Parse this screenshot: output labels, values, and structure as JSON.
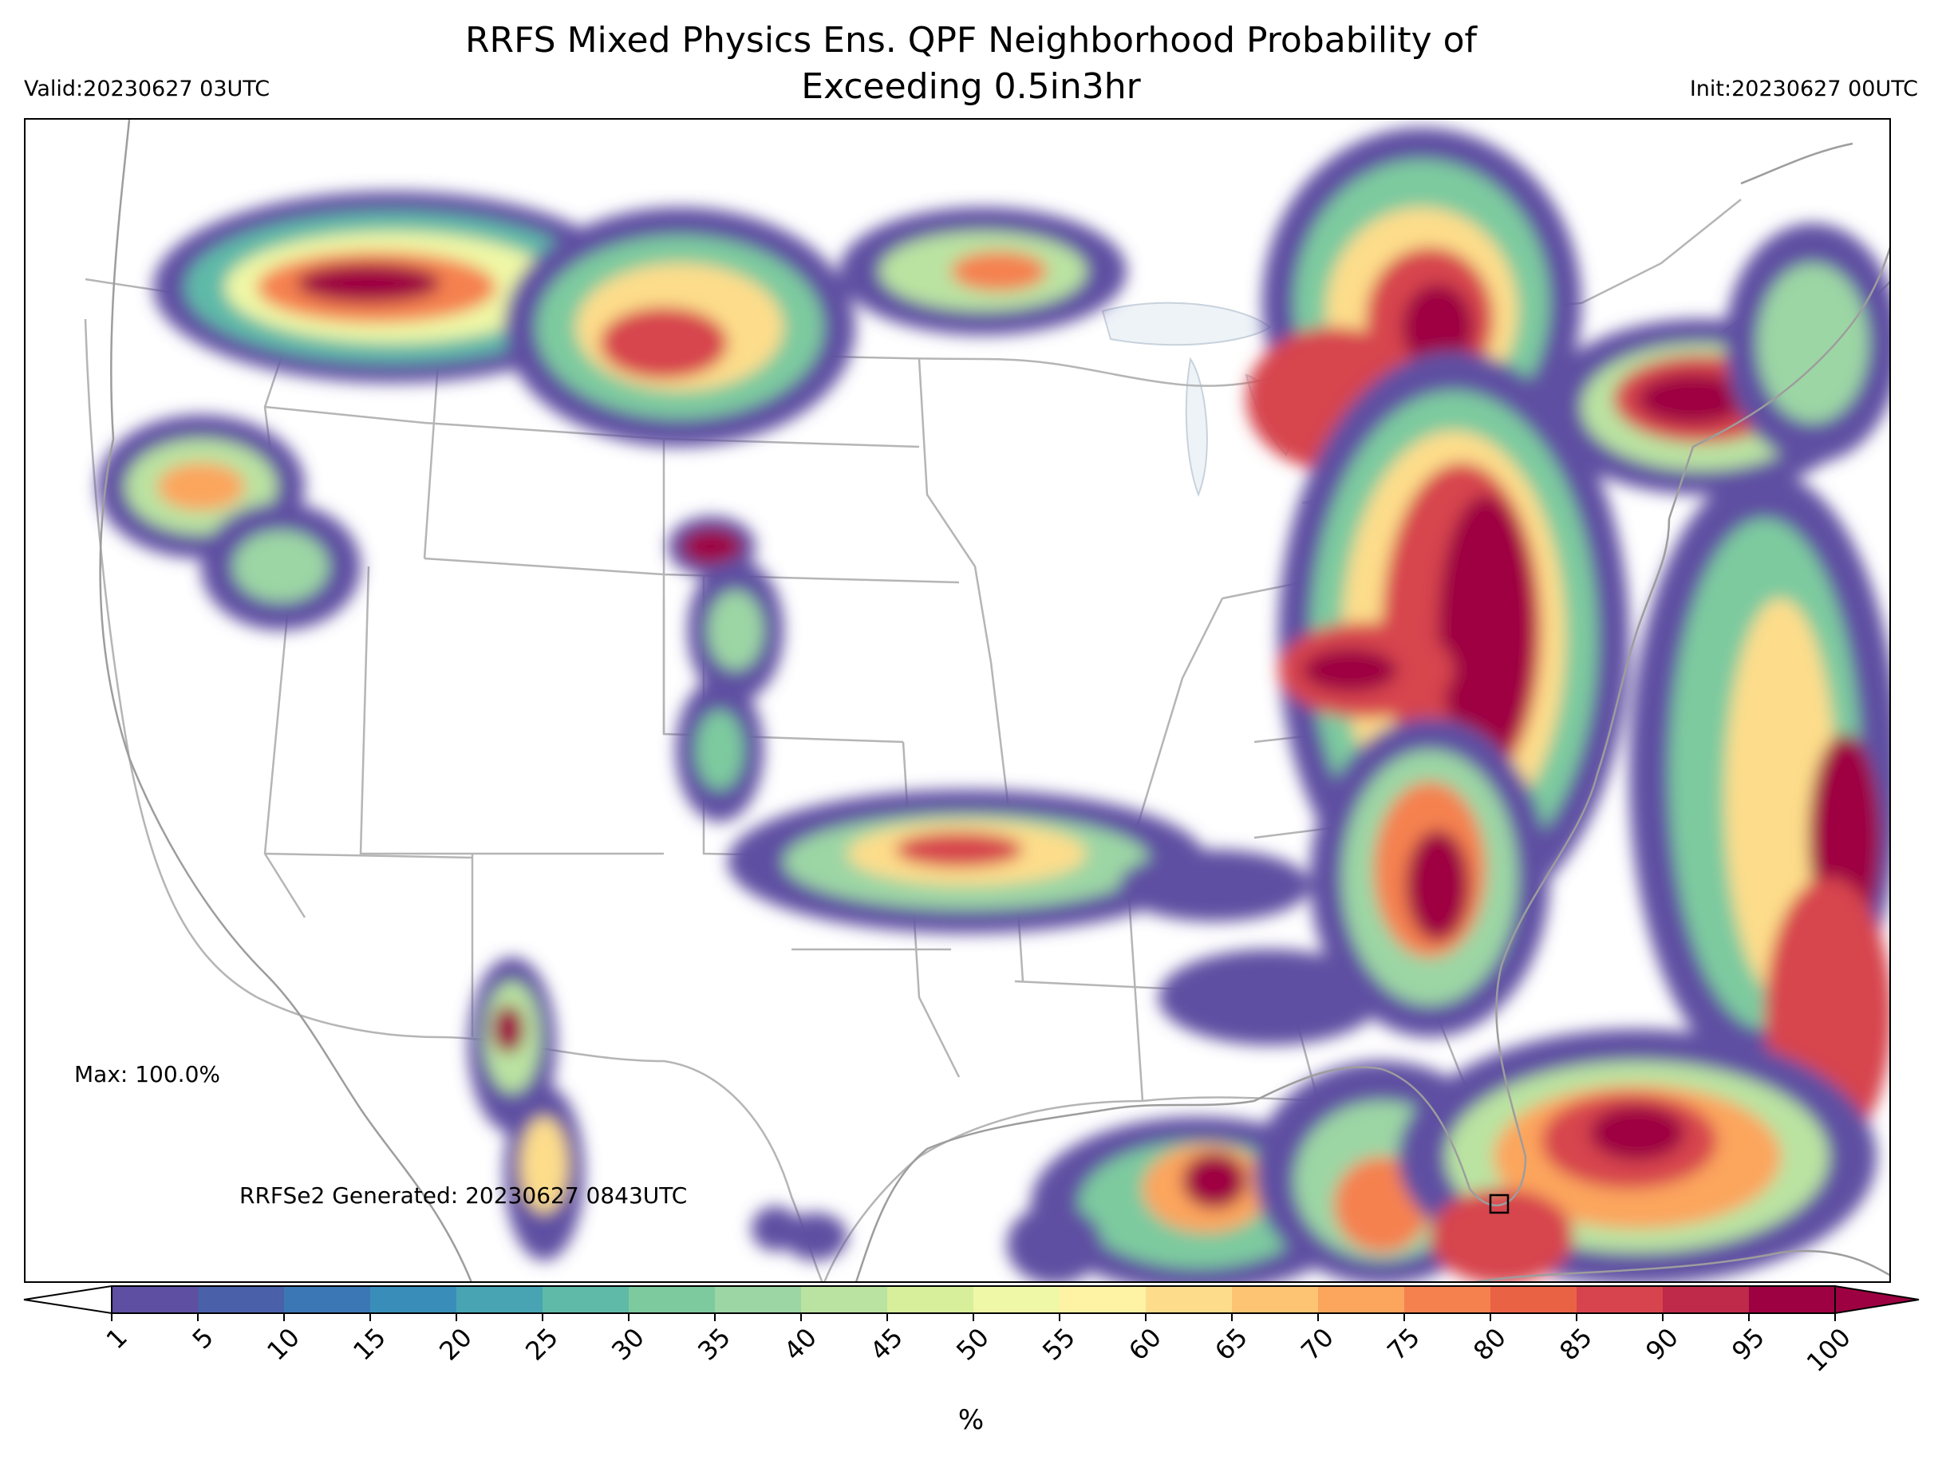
{
  "title_line1": "RRFS Mixed Physics Ens. QPF Neighborhood Probability of",
  "title_line2": "Exceeding 0.5in3hr",
  "valid": "Valid:20230627 03UTC",
  "init": "Init:20230627 00UTC",
  "max_label": "Max: 100.0%",
  "generated": "RRFSe2 Generated: 20230627 0843UTC",
  "colorbar": {
    "label": "%",
    "ticks": [
      "1",
      "5",
      "10",
      "15",
      "20",
      "25",
      "30",
      "35",
      "40",
      "45",
      "50",
      "55",
      "60",
      "65",
      "70",
      "75",
      "80",
      "85",
      "90",
      "95",
      "100"
    ],
    "colors": [
      "#5e4fa2",
      "#4a61aa",
      "#3b77b5",
      "#388eb9",
      "#48a4b3",
      "#5fbaa8",
      "#7dca9f",
      "#9cd6a4",
      "#bae3a1",
      "#d7ef9b",
      "#eff8a6",
      "#fef2a5",
      "#fddd8b",
      "#fdc473",
      "#fca55d",
      "#f5814f",
      "#ea6244",
      "#d7444d",
      "#bf2a4a",
      "#9e0142"
    ],
    "under_color": "#ffffff",
    "over_color": "#9e0142"
  },
  "map": {
    "land_color": "#ffffff",
    "lake_color": "#eef3f8",
    "border_color": "#b0b0b0"
  }
}
